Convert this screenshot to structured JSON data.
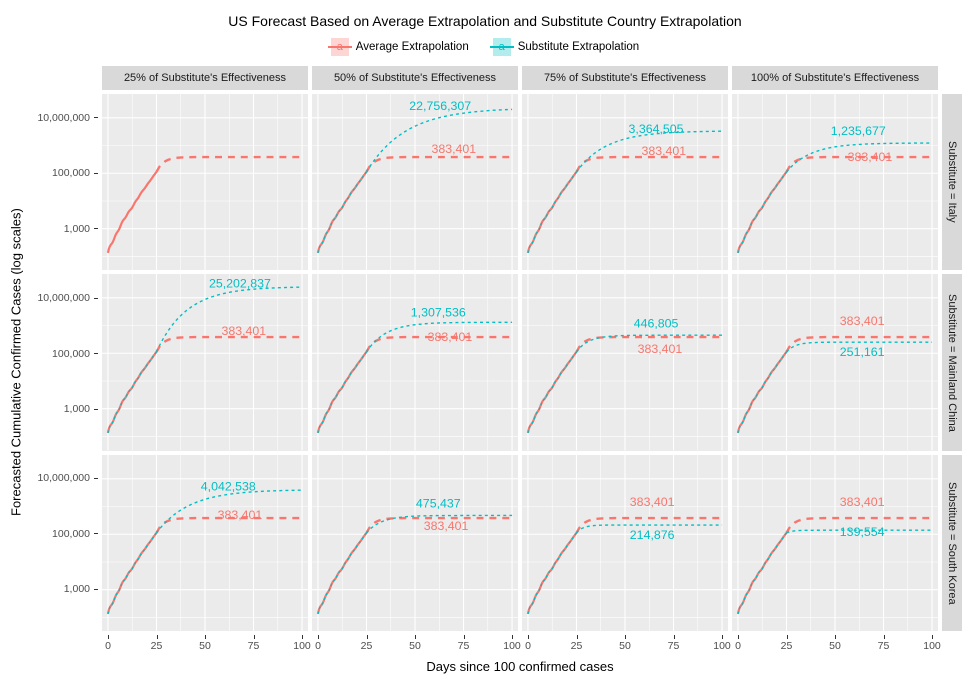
{
  "title": "US Forecast Based on Average Extrapolation and Substitute Country Extrapolation",
  "legend": {
    "key_glyph": "a",
    "items": [
      {
        "label": "Average Extrapolation",
        "color": "#F8766D"
      },
      {
        "label": "Substitute Extrapolation",
        "color": "#00BFC4"
      }
    ]
  },
  "axes": {
    "x_title": "Days since 100 confirmed cases",
    "y_title": "Forecasted Cumulative Confirmed Cases (log scales)",
    "x_ticks": [
      "0",
      "25",
      "50",
      "75",
      "100"
    ],
    "y_ticks": [
      "10,000,000",
      "100,000",
      "1,000"
    ]
  },
  "chart_data": {
    "type": "line",
    "x_range": [
      0,
      100
    ],
    "y_scale": "log10",
    "y_tick_values": [
      10000000,
      100000,
      1000
    ],
    "grid": "on",
    "legend_position": "top",
    "columns": [
      "25% of Substitute's Effectiveness",
      "50% of Substitute's Effectiveness",
      "75% of Substitute's Effectiveness",
      "100% of Substitute's Effectiveness"
    ],
    "rows": [
      "Substitute = Italy",
      "Substitute = Mainland China",
      "Substitute = South Korea"
    ],
    "series": [
      "Average Extrapolation",
      "Substitute Extrapolation"
    ],
    "colors": {
      "average": "#F8766D",
      "substitute": "#00BFC4"
    },
    "curve_model": {
      "start_log": 2.1,
      "bend_day": 25,
      "bend_log": 5.05,
      "avg_k": 0.28
    },
    "panels": [
      {
        "row": 0,
        "col": 0,
        "avg": {
          "final": 383401,
          "label": null
        },
        "sub": null
      },
      {
        "row": 0,
        "col": 1,
        "avg": {
          "final": 383401,
          "label": "383,401",
          "label_day": 70,
          "label_dy": -4
        },
        "sub": {
          "final": 22756307,
          "label": "22,756,307",
          "label_day": 63,
          "label_dy": 2,
          "k": 0.05
        }
      },
      {
        "row": 0,
        "col": 2,
        "avg": {
          "final": 383401,
          "label": "383,401",
          "label_day": 70,
          "label_dy": -2
        },
        "sub": {
          "final": 3364505,
          "label": "3,364,505",
          "label_day": 66,
          "label_dy": 2,
          "k": 0.065
        }
      },
      {
        "row": 0,
        "col": 3,
        "avg": {
          "final": 383401,
          "label": "383,401",
          "label_day": 68,
          "label_dy": 4
        },
        "sub": {
          "final": 1235677,
          "label": "1,235,677",
          "label_day": 62,
          "label_dy": -8,
          "k": 0.08
        }
      },
      {
        "row": 1,
        "col": 0,
        "avg": {
          "final": 383401,
          "label": "383,401",
          "label_day": 70,
          "label_dy": -2
        },
        "sub": {
          "final": 25202837,
          "label": "25,202,837",
          "label_day": 68,
          "label_dy": 1,
          "k": 0.065
        }
      },
      {
        "row": 1,
        "col": 1,
        "avg": {
          "final": 383401,
          "label": "383,401",
          "label_day": 68,
          "label_dy": 4
        },
        "sub": {
          "final": 1307536,
          "label": "1,307,536",
          "label_day": 62,
          "label_dy": -6,
          "k": 0.1
        }
      },
      {
        "row": 1,
        "col": 2,
        "avg": {
          "final": 383401,
          "label": "383,401",
          "label_day": 68,
          "label_dy": 16
        },
        "sub": {
          "final": 446805,
          "label": "446,805",
          "label_day": 66,
          "label_dy": -8,
          "k": 0.16
        }
      },
      {
        "row": 1,
        "col": 3,
        "avg": {
          "final": 383401,
          "label": "383,401",
          "label_day": 64,
          "label_dy": -12
        },
        "sub": {
          "final": 251161,
          "label": "251,161",
          "label_day": 64,
          "label_dy": 14,
          "k": 0.22
        }
      },
      {
        "row": 2,
        "col": 0,
        "avg": {
          "final": 383401,
          "label": "383,401",
          "label_day": 68,
          "label_dy": 1
        },
        "sub": {
          "final": 4042538,
          "label": "4,042,538",
          "label_day": 62,
          "label_dy": 1,
          "k": 0.06
        }
      },
      {
        "row": 2,
        "col": 1,
        "avg": {
          "final": 383401,
          "label": "383,401",
          "label_day": 66,
          "label_dy": 12
        },
        "sub": {
          "final": 475437,
          "label": "475,437",
          "label_day": 62,
          "label_dy": -8,
          "k": 0.13
        }
      },
      {
        "row": 2,
        "col": 2,
        "avg": {
          "final": 383401,
          "label": "383,401",
          "label_day": 64,
          "label_dy": -12
        },
        "sub": {
          "final": 214876,
          "label": "214,876",
          "label_day": 64,
          "label_dy": 14,
          "k": 0.3
        }
      },
      {
        "row": 2,
        "col": 3,
        "avg": {
          "final": 383401,
          "label": "383,401",
          "label_day": 64,
          "label_dy": -12
        },
        "sub": {
          "final": 139554,
          "label": "139,554",
          "label_day": 64,
          "label_dy": 6,
          "k": 0.35
        }
      }
    ]
  }
}
